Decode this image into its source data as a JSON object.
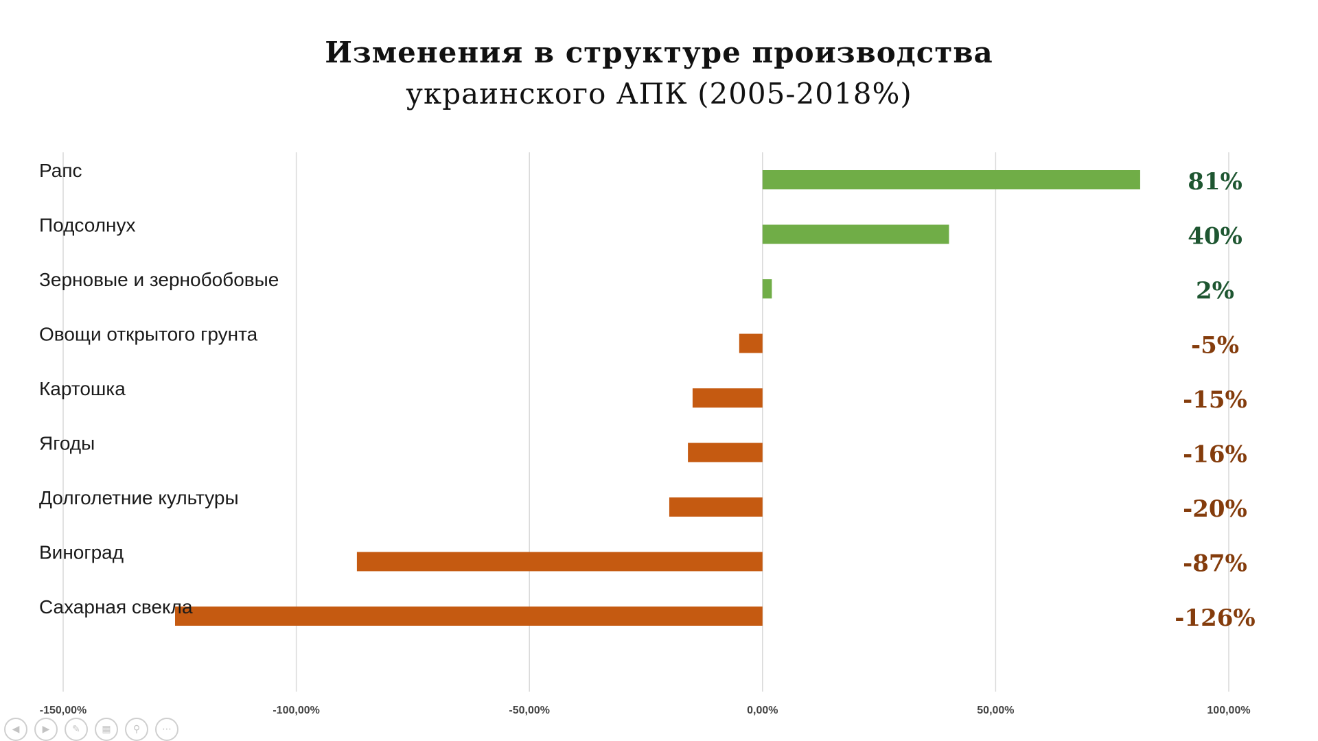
{
  "slide": {
    "title_line_1": "Изменения в структуре производства",
    "title_line_2": "украинского АПК (2005-2018%)"
  },
  "chart_data": {
    "type": "bar",
    "orientation": "horizontal",
    "categories": [
      "Рапс",
      "Подсолнух",
      "Зерновые и зернобобовые",
      "Овощи открытого грунта",
      "Картошка",
      "Ягоды",
      "Долголетние культуры",
      "Виноград",
      "Сахарная свекла"
    ],
    "values": [
      81,
      40,
      2,
      -5,
      -15,
      -16,
      -20,
      -87,
      -126
    ],
    "data_labels": [
      "81%",
      "40%",
      "2%",
      "-5%",
      "-15%",
      "-16%",
      "-20%",
      "-87%",
      "-126%"
    ],
    "x_ticks": [
      "-150,00%",
      "-100,00%",
      "-50,00%",
      "0,00%",
      "50,00%",
      "100,00%"
    ],
    "x_tick_values": [
      -150,
      -100,
      -50,
      0,
      50,
      100
    ],
    "xlim": [
      -150,
      100
    ],
    "grid": "vertical",
    "colors": {
      "positive_bar": "#70ad47",
      "negative_bar": "#c55a11",
      "positive_label": "#1e5631",
      "negative_label": "#843c0c",
      "grid": "#d9d9d9"
    }
  },
  "nav_icons": [
    "prev-icon",
    "next-icon",
    "pen-icon",
    "slides-icon",
    "zoom-icon",
    "more-icon"
  ]
}
